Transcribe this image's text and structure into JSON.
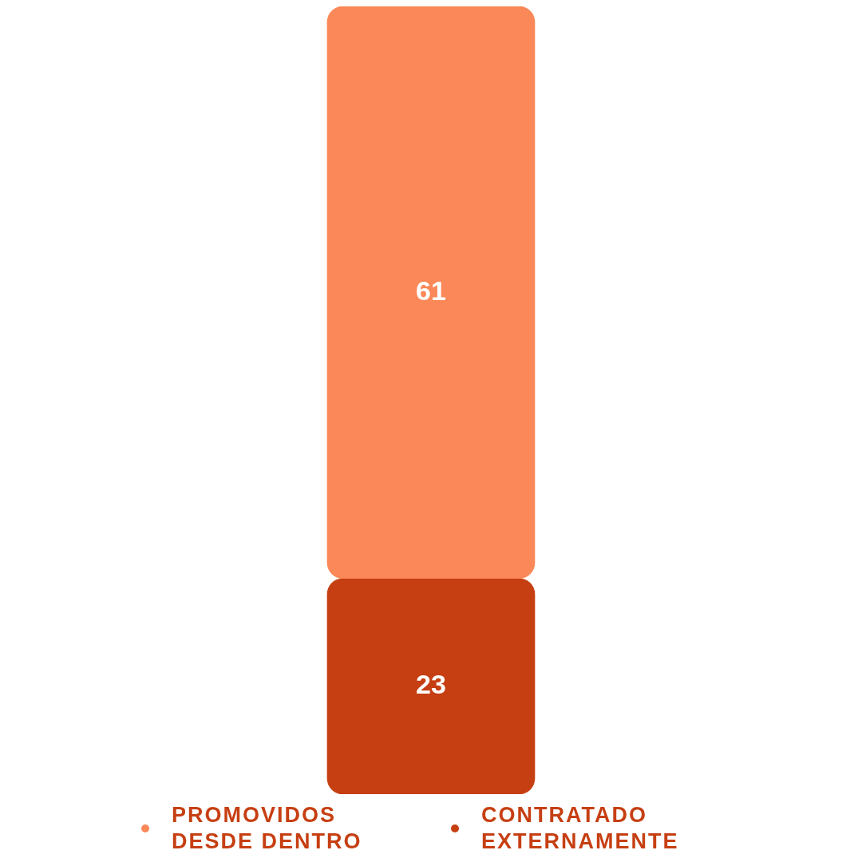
{
  "chart_data": {
    "type": "bar",
    "stacked": true,
    "categories": [
      null
    ],
    "data_labels": true,
    "legend": "bottom",
    "series": [
      {
        "name": "CONTRATADO EXTERNAMENTE",
        "color": "#c63f12",
        "values": [
          23
        ]
      },
      {
        "name": "PROMOVIDOS DESDE DENTRO",
        "color": "#fa8858",
        "values": [
          61
        ]
      }
    ]
  }
}
